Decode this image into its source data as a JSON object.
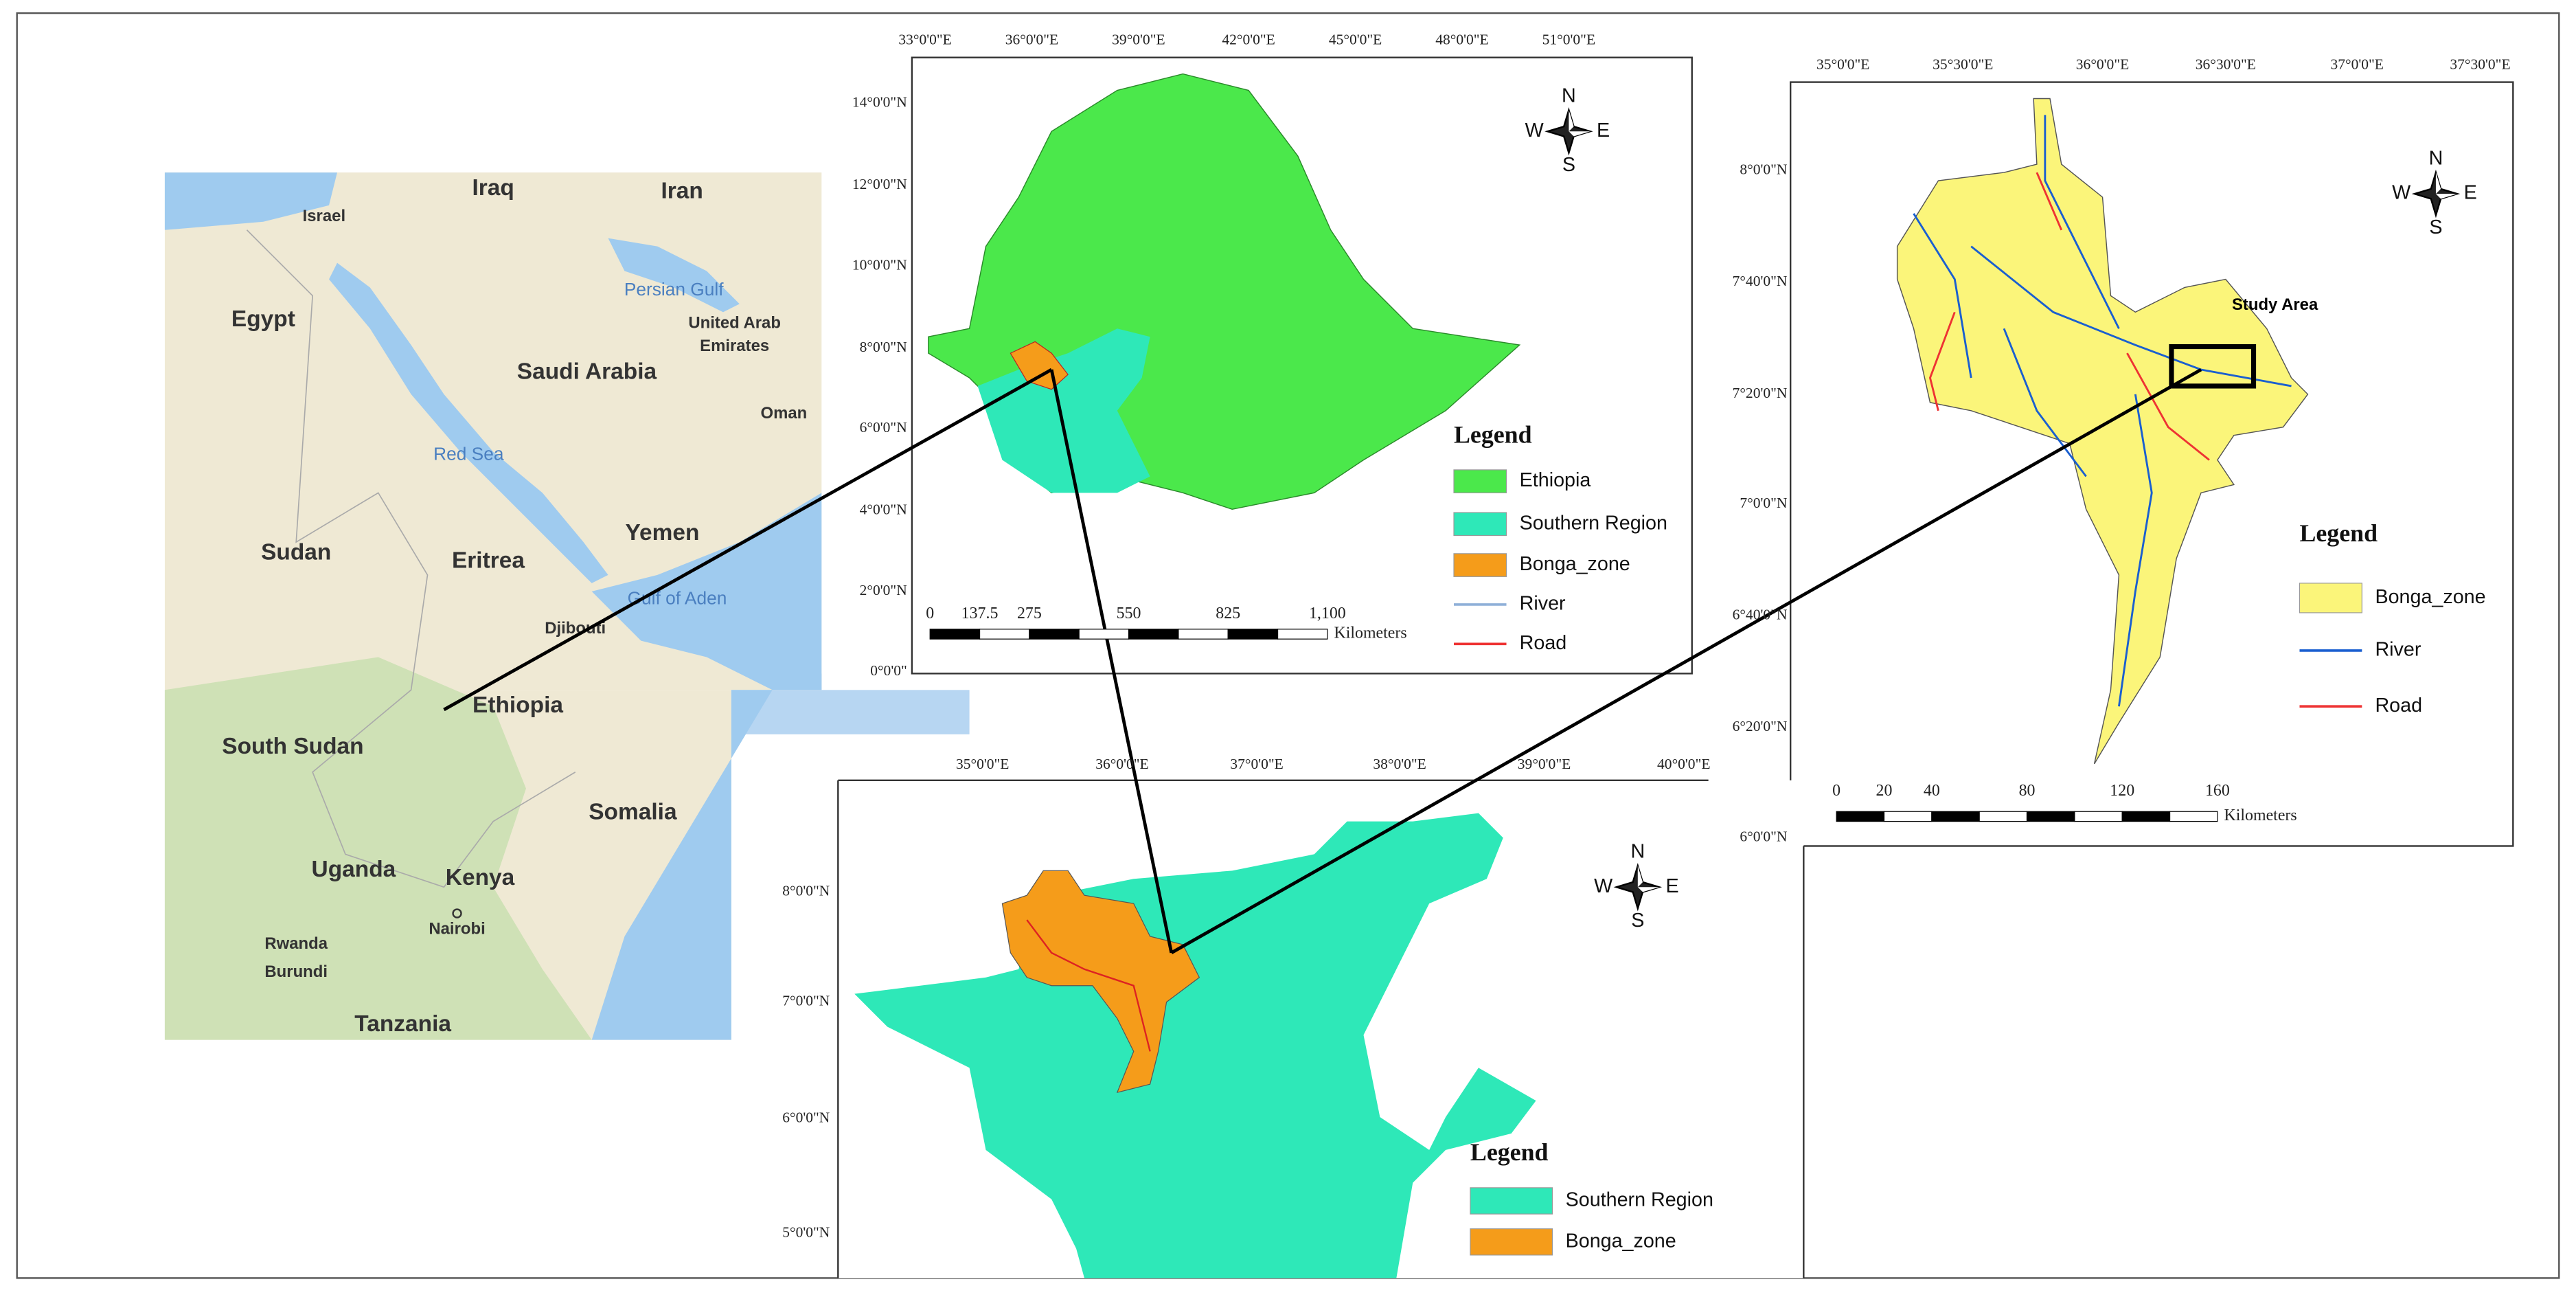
{
  "regional_map": {
    "labels": [
      "Iraq",
      "Iran",
      "Israel",
      "Persian Gulf",
      "Egypt",
      "Saudi Arabia",
      "United Arab",
      "Emirates",
      "Oman",
      "Red Sea",
      "Sudan",
      "Eritrea",
      "Yemen",
      "Gulf of Aden",
      "Djibouti",
      "Ethiopia",
      "South Sudan",
      "Somalia",
      "Uganda",
      "Kenya",
      "Nairobi",
      "Rwanda",
      "Burundi",
      "Tanzania"
    ]
  },
  "ethiopia_map": {
    "x_ticks": [
      "33°0'0\"E",
      "36°0'0\"E",
      "39°0'0\"E",
      "42°0'0\"E",
      "45°0'0\"E",
      "48°0'0\"E",
      "51°0'0\"E"
    ],
    "y_ticks": [
      "14°0'0\"N",
      "12°0'0\"N",
      "10°0'0\"N",
      "8°0'0\"N",
      "6°0'0\"N",
      "4°0'0\"N",
      "2°0'0\"N",
      "0°0'0\""
    ],
    "compass": {
      "n": "N",
      "s": "S",
      "w": "W",
      "e": "E"
    },
    "legend": {
      "title": "Legend",
      "items": [
        "Ethiopia",
        "Southern Region",
        "Bonga_zone",
        "River",
        "Road"
      ]
    },
    "scale_bar": {
      "ticks": [
        "0",
        "137.5",
        "275",
        "550",
        "825",
        "1,100"
      ],
      "unit": "Kilometers"
    }
  },
  "southern_map": {
    "x_ticks": [
      "35°0'0\"E",
      "36°0'0\"E",
      "37°0'0\"E",
      "38°0'0\"E",
      "39°0'0\"E",
      "40°0'0\"E"
    ],
    "y_ticks": [
      "8°0'0\"N",
      "7°0'0\"N",
      "6°0'0\"N",
      "5°0'0\"N"
    ],
    "compass": {
      "n": "N",
      "s": "S",
      "w": "W",
      "e": "E"
    },
    "legend": {
      "title": "Legend",
      "items": [
        "Southern Region",
        "Bonga_zone"
      ]
    }
  },
  "bonga_map": {
    "x_ticks": [
      "35°0'0\"E",
      "35°30'0\"E",
      "36°0'0\"E",
      "36°30'0\"E",
      "37°0'0\"E",
      "37°30'0\"E"
    ],
    "y_ticks": [
      "8°0'0\"N",
      "7°40'0\"N",
      "7°20'0\"N",
      "7°0'0\"N",
      "6°40'0\"N",
      "6°20'0\"N",
      "6°0'0\"N"
    ],
    "compass": {
      "n": "N",
      "s": "S",
      "w": "W",
      "e": "E"
    },
    "study_area": "Study Area",
    "legend": {
      "title": "Legend",
      "items": [
        "Bonga_zone",
        "River",
        "Road"
      ]
    },
    "scale_bar": {
      "ticks": [
        "0",
        "20",
        "40",
        "80",
        "120",
        "160"
      ],
      "unit": "Kilometers"
    }
  }
}
